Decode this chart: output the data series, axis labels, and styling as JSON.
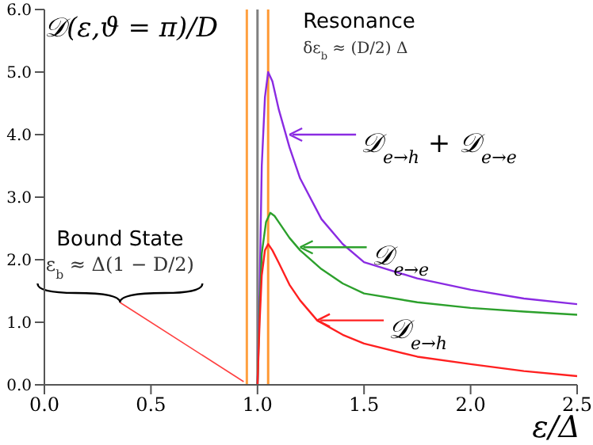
{
  "chart_data": {
    "type": "line",
    "ylabel": "𝒟(ε,ϑ = π)/D",
    "xlabel": "ε/Δ",
    "xlim": [
      0,
      2.5
    ],
    "xticks": [
      {
        "value": 0,
        "label": "0.0"
      },
      {
        "value": 0.5,
        "label": "0.5"
      },
      {
        "value": 1,
        "label": "1.0"
      },
      {
        "value": 1.5,
        "label": "1.5"
      },
      {
        "value": 2,
        "label": "2.0"
      },
      {
        "value": 2.5,
        "label": "2.5"
      }
    ],
    "ylim": [
      0,
      6
    ],
    "yticks": [
      {
        "value": 0,
        "label": "0.0"
      },
      {
        "value": 1,
        "label": "1.0"
      },
      {
        "value": 2,
        "label": "2.0"
      },
      {
        "value": 3,
        "label": "3.0"
      },
      {
        "value": 4,
        "label": "4.0"
      },
      {
        "value": 5,
        "label": "5.0"
      },
      {
        "value": 6,
        "label": "6.0"
      }
    ],
    "grid": false,
    "legend": false,
    "marker": "none",
    "series": [
      {
        "color": "#8a2be2",
        "x": [
          1.0,
          1.01,
          1.02,
          1.035,
          1.05,
          1.07,
          1.1,
          1.15,
          1.2,
          1.3,
          1.4,
          1.5,
          1.75,
          2.0,
          2.25,
          2.5
        ],
        "values": [
          0,
          1.5,
          3.5,
          4.6,
          5.0,
          4.85,
          4.4,
          3.8,
          3.3,
          2.65,
          2.25,
          1.96,
          1.7,
          1.52,
          1.38,
          1.29
        ]
      },
      {
        "color": "#2ca02c",
        "x": [
          1.0,
          1.01,
          1.02,
          1.04,
          1.06,
          1.08,
          1.1,
          1.15,
          1.2,
          1.3,
          1.4,
          1.5,
          1.75,
          2.0,
          2.25,
          2.5
        ],
        "values": [
          0,
          1.2,
          2.1,
          2.6,
          2.75,
          2.7,
          2.6,
          2.35,
          2.15,
          1.85,
          1.62,
          1.46,
          1.32,
          1.23,
          1.17,
          1.12
        ]
      },
      {
        "color": "#ff2020",
        "x": [
          1.0,
          1.01,
          1.02,
          1.035,
          1.05,
          1.07,
          1.1,
          1.15,
          1.2,
          1.28,
          1.4,
          1.5,
          1.75,
          2.0,
          2.25,
          2.5
        ],
        "values": [
          0,
          1.0,
          1.75,
          2.15,
          2.25,
          2.15,
          1.95,
          1.6,
          1.35,
          1.03,
          0.8,
          0.66,
          0.45,
          0.33,
          0.22,
          0.14
        ]
      }
    ],
    "ref_lines": [
      {
        "axis": "x",
        "value": 1.0,
        "color": "#808080"
      },
      {
        "axis": "x",
        "value": 0.95,
        "color": "#ffa040"
      },
      {
        "axis": "x",
        "value": 1.05,
        "color": "#ff9933"
      }
    ],
    "annotations": [
      {
        "text": "Resonance",
        "x": 1.05,
        "y": 5.0
      },
      "δε$_{b}$ ≈ (D/2) Δ",
      {
        "text": "𝒟$_{e→h}$ + 𝒟$_{e→e}$",
        "x": 1.15,
        "y": 4.0
      },
      {
        "text": "𝒟$_{e→e}$",
        "x": 1.2,
        "y": 2.2
      },
      {
        "text": "𝒟$_{e→h}$",
        "x": 1.28,
        "y": 1.03
      },
      "Bound State",
      "ε$_{b}$ ≈ Δ(1 − D/2)"
    ]
  }
}
